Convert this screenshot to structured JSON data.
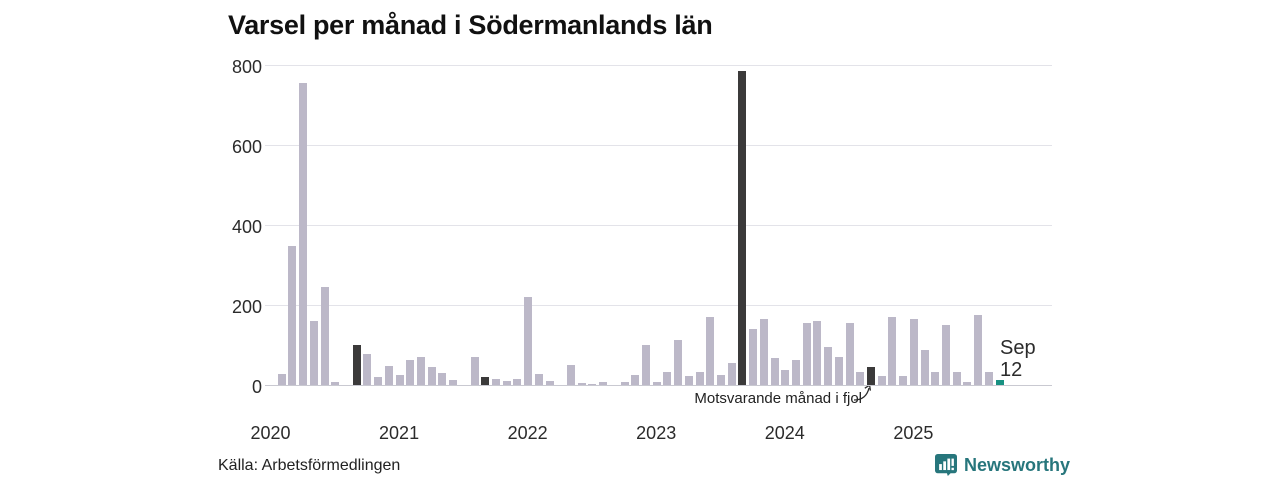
{
  "chart_data": {
    "type": "bar",
    "title": "Varsel per månad i Södermanlands län",
    "x_start": "2020-01",
    "x_freq": "monthly",
    "xlabel": "",
    "ylabel": "",
    "values": [
      0,
      27,
      348,
      755,
      160,
      245,
      7,
      0,
      100,
      78,
      20,
      48,
      25,
      62,
      70,
      44,
      29,
      12,
      0,
      70,
      20,
      15,
      10,
      15,
      220,
      27,
      10,
      0,
      50,
      5,
      3,
      7,
      0,
      7,
      25,
      100,
      8,
      32,
      113,
      23,
      32,
      170,
      25,
      55,
      785,
      140,
      165,
      67,
      38,
      62,
      154,
      160,
      95,
      70,
      155,
      33,
      45,
      22,
      170,
      22,
      165,
      87,
      33,
      150,
      33,
      8,
      175,
      33,
      12
    ],
    "fjol_indices": [
      8,
      20,
      32,
      44,
      56
    ],
    "current_index": 68,
    "yticks": [
      0,
      200,
      400,
      600,
      800
    ],
    "ylim": [
      0,
      800
    ],
    "xticks": [
      "2020",
      "2021",
      "2022",
      "2023",
      "2024",
      "2025"
    ],
    "grid": "horizontal",
    "legend": "none"
  },
  "annotation": {
    "fjol_text": "Motsvarande månad i fjol",
    "current_month": "Sep",
    "current_value": "12"
  },
  "source": {
    "text": "Källa: Arbetsförmedlingen"
  },
  "brand": {
    "name": "Newsworthy"
  },
  "colors": {
    "bar": "#bcb8c8",
    "bar_fjol": "#3b3a3a",
    "bar_current": "#189182",
    "grid": "#e3e3e9",
    "axis_line": "#c9c9d1",
    "text": "#2b2b2b",
    "brand_teal": "#27767c"
  }
}
